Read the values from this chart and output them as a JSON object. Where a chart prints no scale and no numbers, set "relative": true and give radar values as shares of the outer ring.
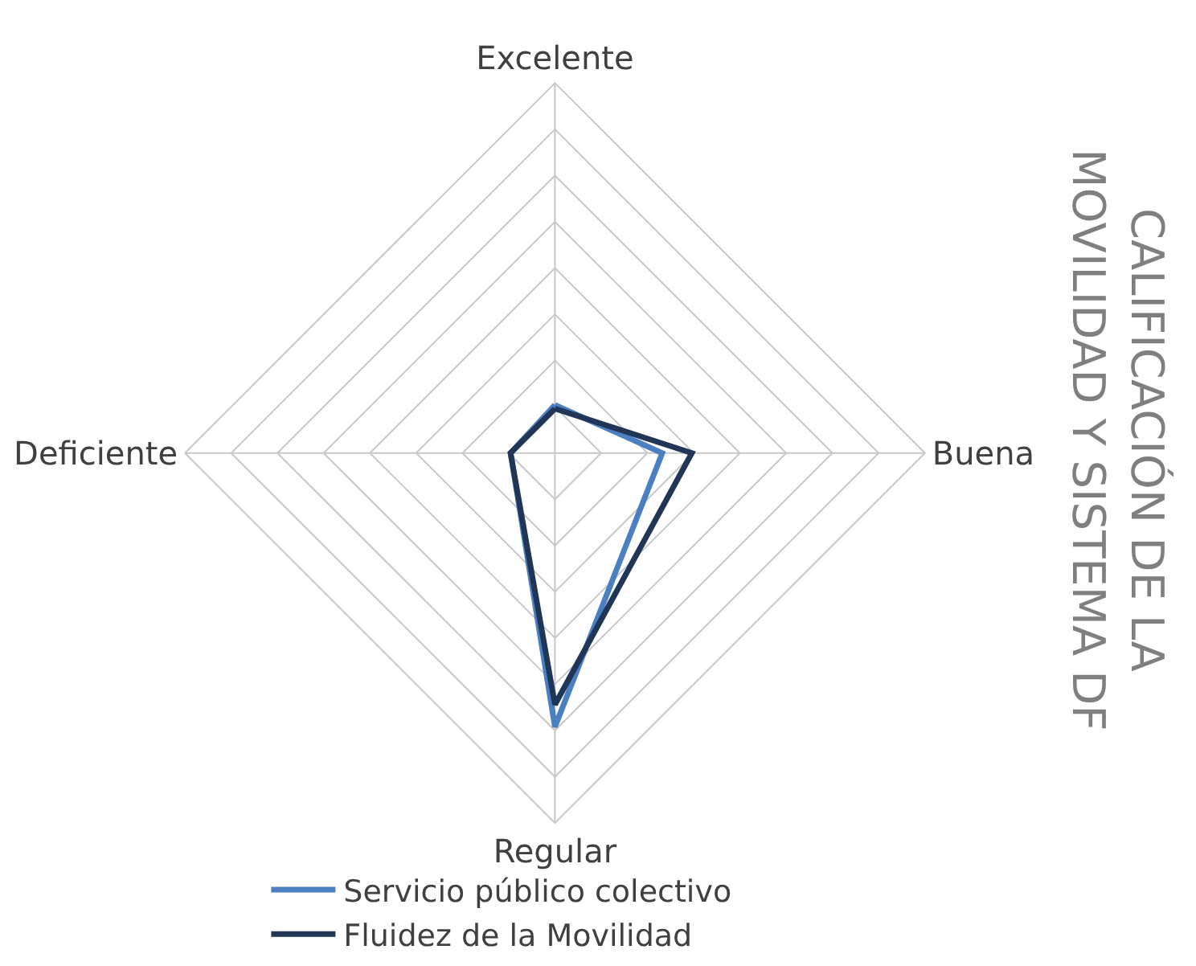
{
  "chart_data": {
    "type": "radar",
    "title": "CALIFICACIÓN DE LA\nMOVILIDAD Y SISTEMA DF",
    "relative": true,
    "categories": [
      "Excelente",
      "Buena",
      "Regular",
      "Deficiente"
    ],
    "series": [
      {
        "name": "Servicio público colectivo",
        "color": "#4a7fc1",
        "values": [
          0.13,
          0.29,
          0.74,
          0.12
        ]
      },
      {
        "name": "Fluidez de la Movilidad",
        "color": "#1f3656",
        "values": [
          0.12,
          0.37,
          0.68,
          0.12
        ]
      }
    ],
    "legend": "bottom",
    "grid": true,
    "marker": "none"
  }
}
